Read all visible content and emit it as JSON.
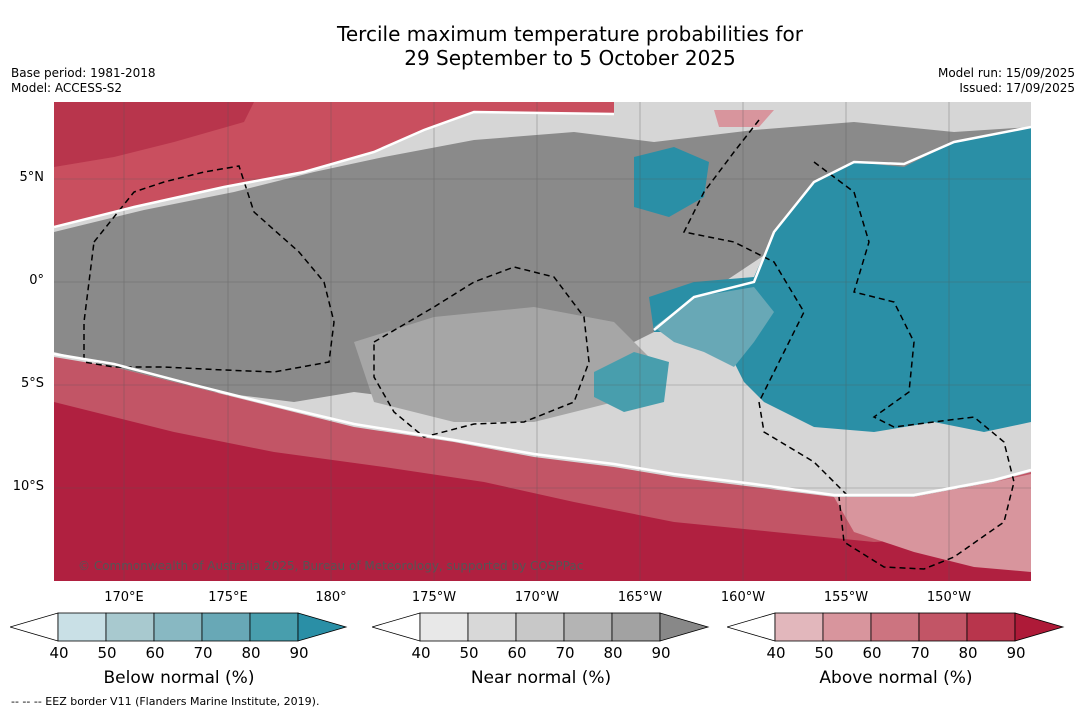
{
  "title_line1": "Tercile maximum temperature probabilities for",
  "title_line2": "29 September to 5 October 2025",
  "base_period": "Base period: 1981-2018",
  "model": "Model: ACCESS-S2",
  "model_run": "Model run: 15/09/2025",
  "issued": "Issued: 17/09/2025",
  "lat_labels": [
    "5°N",
    "0°",
    "5°S",
    "10°S"
  ],
  "lon_labels": [
    "170°E",
    "175°E",
    "180°",
    "175°W",
    "170°W",
    "165°W",
    "160°W",
    "155°W",
    "150°W"
  ],
  "copyright": "© Commonwealth of Australia 2025, Bureau of Meteorology, supported by COSPPac",
  "colorbars": [
    {
      "label": "Below normal (%)",
      "ticks": [
        "40",
        "50",
        "60",
        "70",
        "80",
        "90"
      ],
      "colors": [
        "#c9e0e6",
        "#a8c9cf",
        "#88b8c2",
        "#68a8b6",
        "#489ead",
        "#2a8fa6"
      ]
    },
    {
      "label": "Near normal (%)",
      "ticks": [
        "40",
        "50",
        "60",
        "70",
        "80",
        "90"
      ],
      "colors": [
        "#e8e8e8",
        "#d8d8d8",
        "#c8c8c8",
        "#b4b4b4",
        "#a2a2a2",
        "#888888"
      ]
    },
    {
      "label": "Above normal (%)",
      "ticks": [
        "40",
        "50",
        "60",
        "70",
        "80",
        "90"
      ],
      "colors": [
        "#e2b7bc",
        "#d8959d",
        "#cc7480",
        "#c25566",
        "#b8354c",
        "#ae1a38"
      ]
    }
  ],
  "footnote": "-- -- -- EEZ border V11 (Flanders Marine Institute, 2019)."
}
